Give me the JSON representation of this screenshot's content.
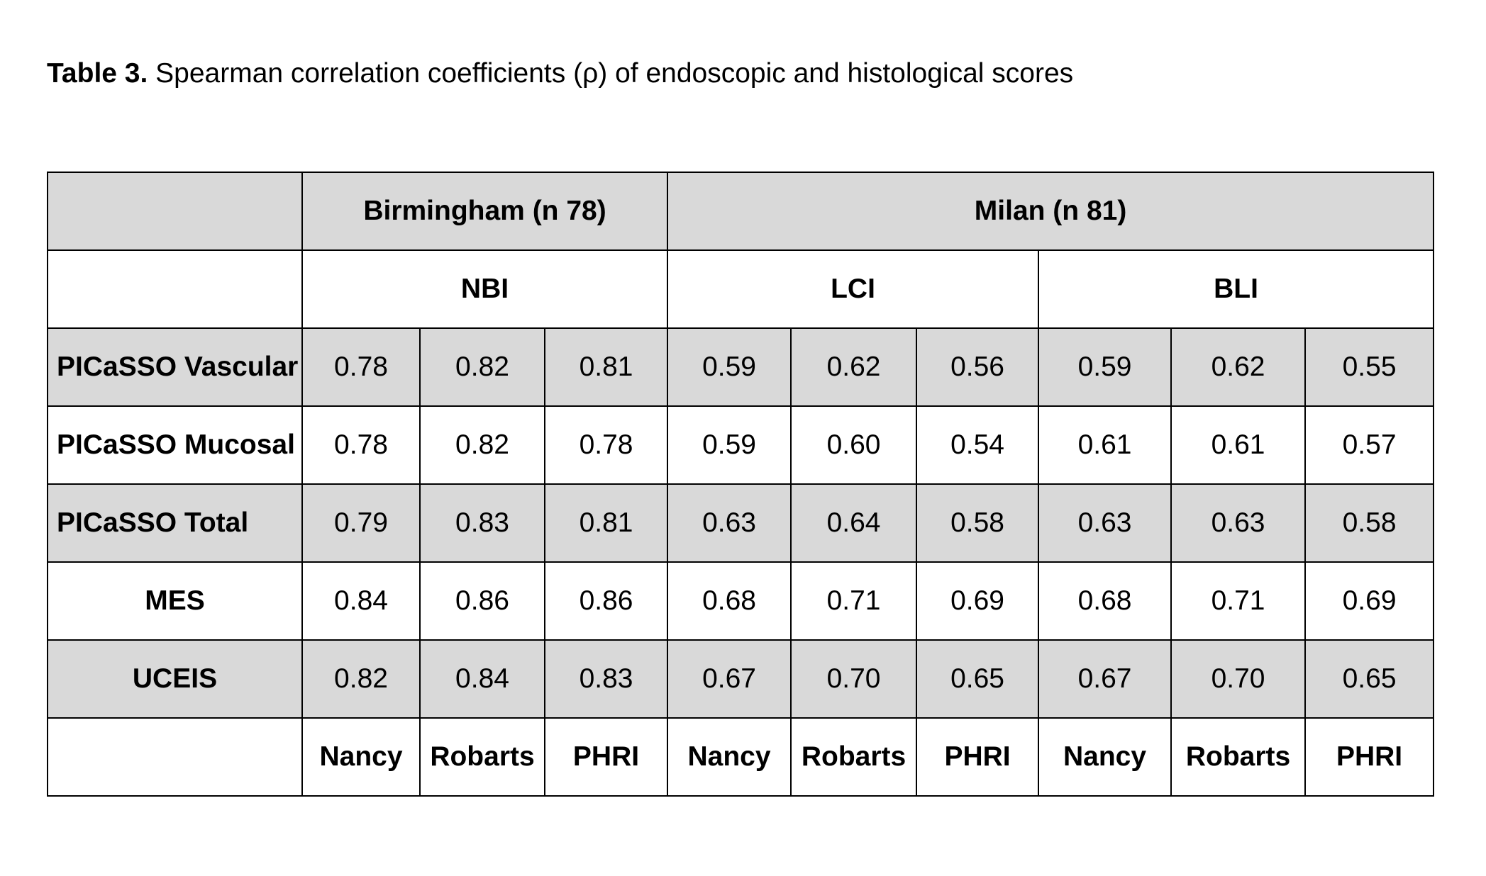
{
  "caption": {
    "label": "Table 3.",
    "text": " Spearman correlation coefficients (ρ) of endoscopic and histological scores"
  },
  "table": {
    "sites": [
      "Birmingham (n 78)",
      "Milan (n 81)"
    ],
    "modalities": [
      "NBI",
      "LCI",
      "BLI"
    ],
    "rows": [
      {
        "label": "PICaSSO Vascular",
        "values": [
          "0.78",
          "0.82",
          "0.81",
          "0.59",
          "0.62",
          "0.56",
          "0.59",
          "0.62",
          "0.55"
        ]
      },
      {
        "label": "PICaSSO Mucosal",
        "values": [
          "0.78",
          "0.82",
          "0.78",
          "0.59",
          "0.60",
          "0.54",
          "0.61",
          "0.61",
          "0.57"
        ]
      },
      {
        "label": "PICaSSO Total",
        "values": [
          "0.79",
          "0.83",
          "0.81",
          "0.63",
          "0.64",
          "0.58",
          "0.63",
          "0.63",
          "0.58"
        ]
      },
      {
        "label": "MES",
        "values": [
          "0.84",
          "0.86",
          "0.86",
          "0.68",
          "0.71",
          "0.69",
          "0.68",
          "0.71",
          "0.69"
        ]
      },
      {
        "label": "UCEIS",
        "values": [
          "0.82",
          "0.84",
          "0.83",
          "0.67",
          "0.70",
          "0.65",
          "0.67",
          "0.70",
          "0.65"
        ]
      }
    ],
    "scores": [
      "Nancy",
      "Robarts",
      "PHRI",
      "Nancy",
      "Robarts",
      "PHRI",
      "Nancy",
      "Robarts",
      "PHRI"
    ]
  }
}
